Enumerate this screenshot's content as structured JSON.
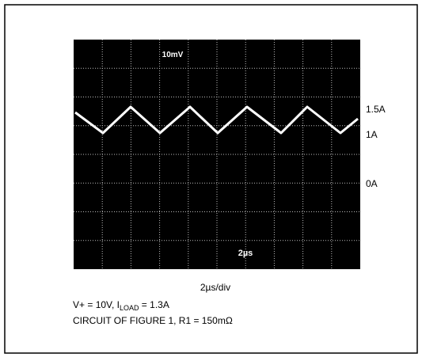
{
  "scope": {
    "top_label": "10mV",
    "bottom_label": "2µs"
  },
  "axis_labels": [
    "1.5A",
    "1A",
    "0A"
  ],
  "caption": {
    "timebase": "2µs/div",
    "line1": {
      "prefix": "V+ = 10V, I",
      "subscript": "LOAD",
      "suffix": " = 1.3A"
    },
    "line2": "CIRCUIT OF FIGURE 1, R1 = 150mΩ"
  }
}
